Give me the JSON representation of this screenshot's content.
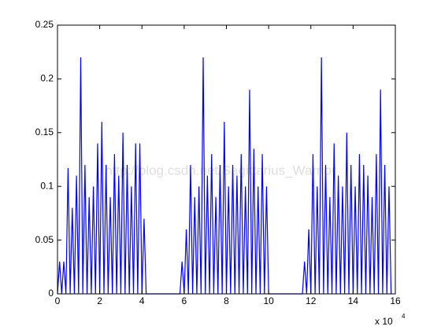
{
  "chart_data": {
    "type": "line",
    "color": "#0000ff",
    "grid": false,
    "watermark": "http://blog.csdn.net/Sagittarius_Warrior",
    "x_multiplier": "x 10",
    "x_exponent": "4",
    "xlim": [
      0,
      160000
    ],
    "xticks": [
      0,
      {
        "value": 20000,
        "label": "2"
      },
      {
        "value": 40000,
        "label": "4"
      },
      {
        "value": 60000,
        "label": "6"
      },
      {
        "value": 80000,
        "label": "8"
      },
      {
        "value": 100000,
        "label": "10"
      },
      {
        "value": 120000,
        "label": "12"
      },
      {
        "value": 140000,
        "label": "14"
      },
      {
        "value": 160000,
        "label": "16"
      }
    ],
    "ylim": [
      0,
      0.25
    ],
    "yticks": [
      0,
      0.05,
      0.1,
      0.15,
      0.2,
      0.25
    ],
    "x": [
      0,
      1000,
      2000,
      3000,
      4000,
      5000,
      6000,
      7000,
      8000,
      9000,
      10000,
      11000,
      12000,
      13000,
      14000,
      15000,
      16000,
      17000,
      18000,
      19000,
      20000,
      21000,
      22000,
      23000,
      24000,
      25000,
      26000,
      27000,
      28000,
      29000,
      30000,
      31000,
      32000,
      33000,
      34000,
      35000,
      36000,
      37000,
      38000,
      39000,
      40000,
      41000,
      42000,
      58000,
      59000,
      60000,
      61000,
      62000,
      63000,
      64000,
      65000,
      66000,
      67000,
      68000,
      69000,
      70000,
      71000,
      72000,
      73000,
      74000,
      75000,
      76000,
      77000,
      78000,
      79000,
      80000,
      81000,
      82000,
      83000,
      84000,
      85000,
      86000,
      87000,
      88000,
      89000,
      90000,
      91000,
      92000,
      93000,
      94000,
      95000,
      96000,
      97000,
      98000,
      99000,
      100000,
      116000,
      117000,
      118000,
      119000,
      120000,
      121000,
      122000,
      123000,
      124000,
      125000,
      126000,
      127000,
      128000,
      129000,
      130000,
      131000,
      132000,
      133000,
      134000,
      135000,
      136000,
      137000,
      138000,
      139000,
      140000,
      141000,
      142000,
      143000,
      144000,
      145000,
      146000,
      147000,
      148000,
      149000,
      150000,
      151000,
      152000,
      153000,
      154000,
      155000,
      156000,
      157000,
      158000
    ],
    "values": [
      0,
      0.03,
      0,
      0.03,
      0,
      0.117,
      0,
      0.08,
      0,
      0.11,
      0,
      0.22,
      0,
      0.12,
      0,
      0.09,
      0,
      0.1,
      0,
      0.14,
      0,
      0.16,
      0,
      0.12,
      0,
      0.09,
      0,
      0.13,
      0,
      0.11,
      0,
      0.15,
      0,
      0.12,
      0,
      0.1,
      0,
      0.14,
      0,
      0.14,
      0,
      0.07,
      0,
      0,
      0.03,
      0,
      0.06,
      0,
      0.12,
      0,
      0.09,
      0,
      0.1,
      0,
      0.22,
      0,
      0.11,
      0,
      0.13,
      0,
      0.09,
      0,
      0.12,
      0,
      0.16,
      0,
      0.1,
      0,
      0.12,
      0,
      0.11,
      0,
      0.13,
      0,
      0.1,
      0,
      0.19,
      0,
      0.135,
      0,
      0.1,
      0,
      0.13,
      0,
      0.1,
      0,
      0,
      0.03,
      0,
      0.06,
      0,
      0.13,
      0,
      0.1,
      0,
      0.22,
      0,
      0.12,
      0,
      0.09,
      0,
      0.14,
      0,
      0.11,
      0,
      0.1,
      0,
      0.15,
      0,
      0.12,
      0,
      0.1,
      0,
      0.13,
      0,
      0.12,
      0,
      0.11,
      0,
      0.09,
      0,
      0.13,
      0,
      0.19,
      0,
      0.12,
      0,
      0.1,
      0
    ]
  }
}
